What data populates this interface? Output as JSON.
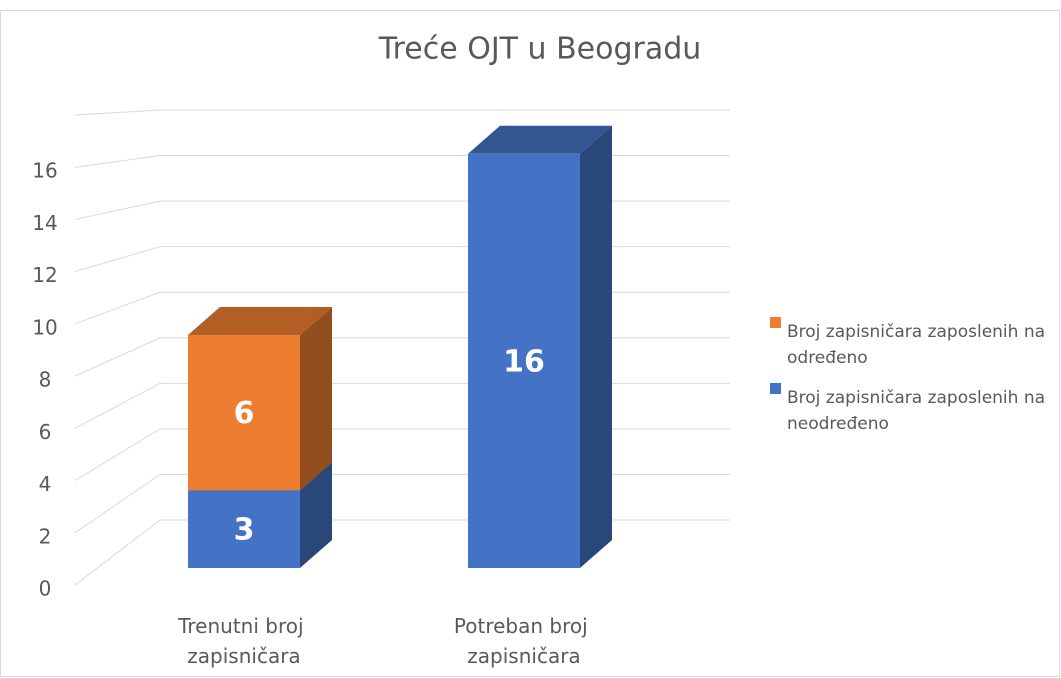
{
  "chart_data": {
    "type": "bar3d_stacked",
    "title": "Treće OJT u Beogradu",
    "categories": [
      "Trenutni broj zapisničara",
      "Potreban broj zapisničara"
    ],
    "series": [
      {
        "name": "Broj zapisničara zaposlenih na neodređeno",
        "color": "#4472c4",
        "values": [
          3,
          16
        ]
      },
      {
        "name": "Broj zapisničara zaposlenih na određeno",
        "color": "#ed7d31",
        "values": [
          6,
          null
        ]
      }
    ],
    "ylim": [
      0,
      18
    ],
    "yticks": [
      0,
      2,
      4,
      6,
      8,
      10,
      12,
      14,
      16
    ],
    "grid": true,
    "legend": "right"
  }
}
